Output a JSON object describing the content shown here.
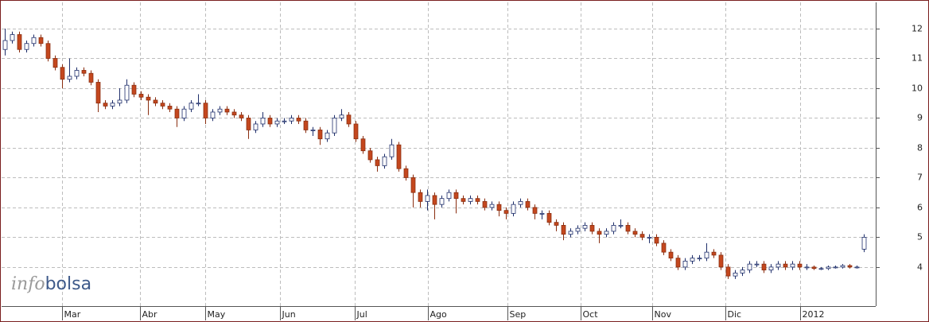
{
  "chart_data": {
    "type": "candlestick",
    "watermark": {
      "part1": "info",
      "part2": "bolsa"
    },
    "xlim": [
      -0.5,
      121.5
    ],
    "xticks": [
      {
        "value": 7.9,
        "label": "Mar"
      },
      {
        "value": 18.8,
        "label": "Abr"
      },
      {
        "value": 27.9,
        "label": "May"
      },
      {
        "value": 38.4,
        "label": "Jun"
      },
      {
        "value": 48.8,
        "label": "Jul"
      },
      {
        "value": 59.1,
        "label": "Ago"
      },
      {
        "value": 70.2,
        "label": "Sep"
      },
      {
        "value": 80.4,
        "label": "Oct"
      },
      {
        "value": 90.4,
        "label": "Nov"
      },
      {
        "value": 100.6,
        "label": "Dic"
      },
      {
        "value": 111,
        "label": "2012"
      }
    ],
    "ylim": [
      2.69,
      12.88
    ],
    "yticks": [
      4,
      5,
      6,
      7,
      8,
      9,
      10,
      11,
      12
    ],
    "grid": true,
    "up_color": "#ffffff",
    "up_stroke": "#1f2f6b",
    "down_color": "#c4471e",
    "down_stroke": "#8a2e10",
    "candles": [
      {
        "open": 11.3,
        "high": 12.0,
        "low": 11.1,
        "close": 11.6
      },
      {
        "open": 11.6,
        "high": 11.9,
        "low": 11.5,
        "close": 11.8
      },
      {
        "open": 11.8,
        "high": 11.9,
        "low": 11.2,
        "close": 11.3
      },
      {
        "open": 11.3,
        "high": 11.6,
        "low": 11.2,
        "close": 11.5
      },
      {
        "open": 11.5,
        "high": 11.8,
        "low": 11.4,
        "close": 11.7
      },
      {
        "open": 11.7,
        "high": 11.8,
        "low": 11.4,
        "close": 11.5
      },
      {
        "open": 11.5,
        "high": 11.6,
        "low": 10.9,
        "close": 11.0
      },
      {
        "open": 11.0,
        "high": 11.1,
        "low": 10.6,
        "close": 10.7
      },
      {
        "open": 10.7,
        "high": 10.8,
        "low": 10.0,
        "close": 10.3
      },
      {
        "open": 10.3,
        "high": 11.0,
        "low": 10.2,
        "close": 10.4
      },
      {
        "open": 10.4,
        "high": 10.7,
        "low": 10.3,
        "close": 10.6
      },
      {
        "open": 10.6,
        "high": 10.7,
        "low": 10.4,
        "close": 10.5
      },
      {
        "open": 10.5,
        "high": 10.6,
        "low": 10.1,
        "close": 10.2
      },
      {
        "open": 10.2,
        "high": 10.3,
        "low": 9.2,
        "close": 9.5
      },
      {
        "open": 9.5,
        "high": 9.6,
        "low": 9.3,
        "close": 9.4
      },
      {
        "open": 9.4,
        "high": 9.6,
        "low": 9.3,
        "close": 9.5
      },
      {
        "open": 9.5,
        "high": 10.0,
        "low": 9.4,
        "close": 9.6
      },
      {
        "open": 9.6,
        "high": 10.3,
        "low": 9.5,
        "close": 10.1
      },
      {
        "open": 10.1,
        "high": 10.2,
        "low": 9.7,
        "close": 9.8
      },
      {
        "open": 9.8,
        "high": 9.9,
        "low": 9.6,
        "close": 9.7
      },
      {
        "open": 9.7,
        "high": 9.8,
        "low": 9.1,
        "close": 9.6
      },
      {
        "open": 9.6,
        "high": 9.7,
        "low": 9.4,
        "close": 9.5
      },
      {
        "open": 9.5,
        "high": 9.6,
        "low": 9.3,
        "close": 9.4
      },
      {
        "open": 9.4,
        "high": 9.5,
        "low": 9.2,
        "close": 9.3
      },
      {
        "open": 9.3,
        "high": 9.4,
        "low": 8.7,
        "close": 9.0
      },
      {
        "open": 9.0,
        "high": 9.4,
        "low": 8.9,
        "close": 9.3
      },
      {
        "open": 9.3,
        "high": 9.6,
        "low": 9.2,
        "close": 9.5
      },
      {
        "open": 9.5,
        "high": 9.8,
        "low": 9.4,
        "close": 9.5
      },
      {
        "open": 9.5,
        "high": 9.6,
        "low": 8.8,
        "close": 9.0
      },
      {
        "open": 9.0,
        "high": 9.3,
        "low": 8.9,
        "close": 9.2
      },
      {
        "open": 9.2,
        "high": 9.4,
        "low": 9.1,
        "close": 9.3
      },
      {
        "open": 9.3,
        "high": 9.4,
        "low": 9.1,
        "close": 9.2
      },
      {
        "open": 9.2,
        "high": 9.3,
        "low": 9.0,
        "close": 9.1
      },
      {
        "open": 9.1,
        "high": 9.2,
        "low": 8.9,
        "close": 9.0
      },
      {
        "open": 9.0,
        "high": 9.1,
        "low": 8.3,
        "close": 8.6
      },
      {
        "open": 8.6,
        "high": 8.9,
        "low": 8.5,
        "close": 8.8
      },
      {
        "open": 8.8,
        "high": 9.2,
        "low": 8.7,
        "close": 9.0
      },
      {
        "open": 9.0,
        "high": 9.1,
        "low": 8.7,
        "close": 8.8
      },
      {
        "open": 8.8,
        "high": 9.0,
        "low": 8.7,
        "close": 8.9
      },
      {
        "open": 8.9,
        "high": 9.0,
        "low": 8.8,
        "close": 8.9
      },
      {
        "open": 8.9,
        "high": 9.1,
        "low": 8.8,
        "close": 9.0
      },
      {
        "open": 9.0,
        "high": 9.1,
        "low": 8.8,
        "close": 8.9
      },
      {
        "open": 8.9,
        "high": 9.0,
        "low": 8.5,
        "close": 8.6
      },
      {
        "open": 8.6,
        "high": 8.7,
        "low": 8.4,
        "close": 8.6
      },
      {
        "open": 8.6,
        "high": 8.7,
        "low": 8.1,
        "close": 8.3
      },
      {
        "open": 8.3,
        "high": 8.6,
        "low": 8.2,
        "close": 8.5
      },
      {
        "open": 8.5,
        "high": 9.1,
        "low": 8.4,
        "close": 9.0
      },
      {
        "open": 9.0,
        "high": 9.3,
        "low": 8.9,
        "close": 9.1
      },
      {
        "open": 9.1,
        "high": 9.2,
        "low": 8.7,
        "close": 8.8
      },
      {
        "open": 8.8,
        "high": 8.9,
        "low": 8.2,
        "close": 8.3
      },
      {
        "open": 8.3,
        "high": 8.4,
        "low": 7.8,
        "close": 7.9
      },
      {
        "open": 7.9,
        "high": 8.0,
        "low": 7.5,
        "close": 7.6
      },
      {
        "open": 7.6,
        "high": 7.7,
        "low": 7.2,
        "close": 7.4
      },
      {
        "open": 7.4,
        "high": 7.8,
        "low": 7.3,
        "close": 7.7
      },
      {
        "open": 7.7,
        "high": 8.3,
        "low": 7.6,
        "close": 8.1
      },
      {
        "open": 8.1,
        "high": 8.2,
        "low": 7.2,
        "close": 7.3
      },
      {
        "open": 7.3,
        "high": 7.4,
        "low": 6.9,
        "close": 7.0
      },
      {
        "open": 7.0,
        "high": 7.1,
        "low": 6.0,
        "close": 6.5
      },
      {
        "open": 6.5,
        "high": 6.6,
        "low": 6.0,
        "close": 6.2
      },
      {
        "open": 6.2,
        "high": 6.6,
        "low": 5.9,
        "close": 6.4
      },
      {
        "open": 6.4,
        "high": 6.5,
        "low": 5.6,
        "close": 6.1
      },
      {
        "open": 6.1,
        "high": 6.4,
        "low": 6.0,
        "close": 6.3
      },
      {
        "open": 6.3,
        "high": 6.6,
        "low": 6.2,
        "close": 6.5
      },
      {
        "open": 6.5,
        "high": 6.6,
        "low": 5.8,
        "close": 6.3
      },
      {
        "open": 6.3,
        "high": 6.4,
        "low": 6.1,
        "close": 6.2
      },
      {
        "open": 6.2,
        "high": 6.4,
        "low": 6.1,
        "close": 6.3
      },
      {
        "open": 6.3,
        "high": 6.4,
        "low": 6.1,
        "close": 6.2
      },
      {
        "open": 6.2,
        "high": 6.3,
        "low": 5.9,
        "close": 6.0
      },
      {
        "open": 6.0,
        "high": 6.2,
        "low": 5.9,
        "close": 6.1
      },
      {
        "open": 6.1,
        "high": 6.2,
        "low": 5.7,
        "close": 5.9
      },
      {
        "open": 5.9,
        "high": 6.0,
        "low": 5.6,
        "close": 5.8
      },
      {
        "open": 5.8,
        "high": 6.2,
        "low": 5.7,
        "close": 6.1
      },
      {
        "open": 6.1,
        "high": 6.3,
        "low": 6.0,
        "close": 6.2
      },
      {
        "open": 6.2,
        "high": 6.3,
        "low": 5.9,
        "close": 6.0
      },
      {
        "open": 6.0,
        "high": 6.1,
        "low": 5.6,
        "close": 5.8
      },
      {
        "open": 5.8,
        "high": 5.9,
        "low": 5.6,
        "close": 5.8
      },
      {
        "open": 5.8,
        "high": 5.9,
        "low": 5.4,
        "close": 5.5
      },
      {
        "open": 5.5,
        "high": 5.6,
        "low": 5.2,
        "close": 5.4
      },
      {
        "open": 5.4,
        "high": 5.5,
        "low": 4.9,
        "close": 5.1
      },
      {
        "open": 5.1,
        "high": 5.3,
        "low": 5.0,
        "close": 5.2
      },
      {
        "open": 5.2,
        "high": 5.4,
        "low": 5.1,
        "close": 5.3
      },
      {
        "open": 5.3,
        "high": 5.5,
        "low": 5.2,
        "close": 5.4
      },
      {
        "open": 5.4,
        "high": 5.5,
        "low": 5.1,
        "close": 5.2
      },
      {
        "open": 5.2,
        "high": 5.3,
        "low": 4.8,
        "close": 5.1
      },
      {
        "open": 5.1,
        "high": 5.3,
        "low": 5.0,
        "close": 5.2
      },
      {
        "open": 5.2,
        "high": 5.5,
        "low": 5.1,
        "close": 5.4
      },
      {
        "open": 5.4,
        "high": 5.6,
        "low": 5.3,
        "close": 5.4
      },
      {
        "open": 5.4,
        "high": 5.5,
        "low": 5.1,
        "close": 5.2
      },
      {
        "open": 5.2,
        "high": 5.3,
        "low": 5.0,
        "close": 5.1
      },
      {
        "open": 5.1,
        "high": 5.2,
        "low": 4.9,
        "close": 5.0
      },
      {
        "open": 5.0,
        "high": 5.1,
        "low": 4.8,
        "close": 5.0
      },
      {
        "open": 5.0,
        "high": 5.1,
        "low": 4.7,
        "close": 4.8
      },
      {
        "open": 4.8,
        "high": 4.9,
        "low": 4.4,
        "close": 4.5
      },
      {
        "open": 4.5,
        "high": 4.6,
        "low": 4.2,
        "close": 4.3
      },
      {
        "open": 4.3,
        "high": 4.4,
        "low": 3.9,
        "close": 4.0
      },
      {
        "open": 4.0,
        "high": 4.3,
        "low": 3.9,
        "close": 4.2
      },
      {
        "open": 4.2,
        "high": 4.4,
        "low": 4.1,
        "close": 4.3
      },
      {
        "open": 4.3,
        "high": 4.4,
        "low": 4.2,
        "close": 4.3
      },
      {
        "open": 4.3,
        "high": 4.8,
        "low": 4.2,
        "close": 4.5
      },
      {
        "open": 4.5,
        "high": 4.6,
        "low": 4.3,
        "close": 4.4
      },
      {
        "open": 4.4,
        "high": 4.5,
        "low": 3.9,
        "close": 4.0
      },
      {
        "open": 4.0,
        "high": 4.1,
        "low": 3.6,
        "close": 3.7
      },
      {
        "open": 3.7,
        "high": 3.9,
        "low": 3.6,
        "close": 3.8
      },
      {
        "open": 3.8,
        "high": 4.0,
        "low": 3.7,
        "close": 3.9
      },
      {
        "open": 3.9,
        "high": 4.2,
        "low": 3.8,
        "close": 4.1
      },
      {
        "open": 4.1,
        "high": 4.2,
        "low": 4.0,
        "close": 4.1
      },
      {
        "open": 4.1,
        "high": 4.2,
        "low": 3.8,
        "close": 3.9
      },
      {
        "open": 3.9,
        "high": 4.1,
        "low": 3.8,
        "close": 4.0
      },
      {
        "open": 4.0,
        "high": 4.2,
        "low": 3.9,
        "close": 4.1
      },
      {
        "open": 4.1,
        "high": 4.2,
        "low": 3.9,
        "close": 4.0
      },
      {
        "open": 4.0,
        "high": 4.2,
        "low": 3.9,
        "close": 4.1
      },
      {
        "open": 4.1,
        "high": 4.2,
        "low": 3.9,
        "close": 4.0
      },
      {
        "open": 4.0,
        "high": 4.1,
        "low": 3.9,
        "close": 4.0
      },
      {
        "open": 4.0,
        "high": 4.05,
        "low": 3.9,
        "close": 3.95
      },
      {
        "open": 3.95,
        "high": 4.0,
        "low": 3.9,
        "close": 3.95
      },
      {
        "open": 3.95,
        "high": 4.05,
        "low": 3.9,
        "close": 4.0
      },
      {
        "open": 4.0,
        "high": 4.05,
        "low": 3.95,
        "close": 4.0
      },
      {
        "open": 4.0,
        "high": 4.1,
        "low": 3.95,
        "close": 4.05
      },
      {
        "open": 4.05,
        "high": 4.1,
        "low": 3.95,
        "close": 4.0
      },
      {
        "open": 4.0,
        "high": 4.05,
        "low": 3.95,
        "close": 4.0
      },
      {
        "open": 4.6,
        "high": 5.1,
        "low": 4.5,
        "close": 5.0
      }
    ]
  }
}
